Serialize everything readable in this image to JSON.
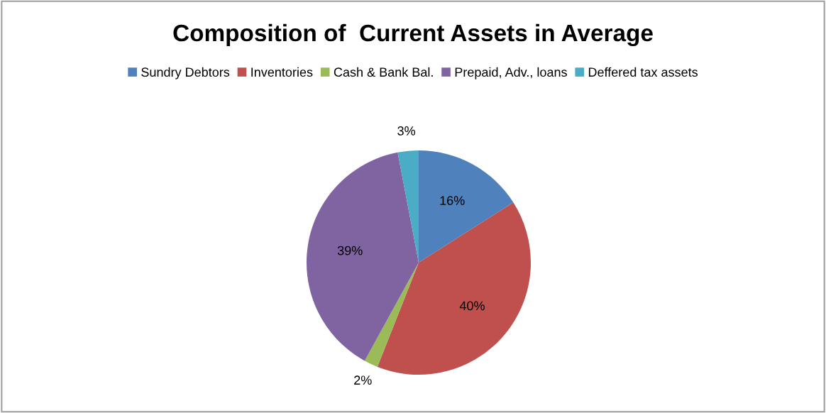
{
  "chart_data": {
    "type": "pie",
    "title": "Composition of  Current Assets in Average",
    "categories": [
      "Sundry Debtors",
      "Inventories",
      "Cash & Bank Bal.",
      "Prepaid, Adv., loans",
      "Deffered tax assets"
    ],
    "values": [
      16,
      40,
      2,
      39,
      3
    ],
    "colors": [
      "#4f81bd",
      "#c0504d",
      "#9bbb59",
      "#8064a2",
      "#4bacc6"
    ],
    "value_labels": [
      "16%",
      "40%",
      "2%",
      "39%",
      "3%"
    ],
    "legend": "top"
  }
}
